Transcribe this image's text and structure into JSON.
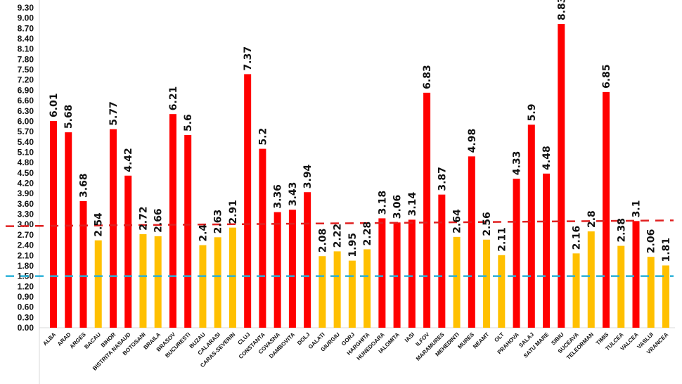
{
  "chart_data": {
    "type": "bar",
    "title": "",
    "xlabel": "",
    "ylabel": "",
    "ylim": [
      0,
      9.3
    ],
    "ytick_step": 0.3,
    "grid": false,
    "legend": "none",
    "categories": [
      "ALBA",
      "ARAD",
      "ARGES",
      "BACAU",
      "BIHOR",
      "BISTRITA NASAUD",
      "BOTOSANI",
      "BRAILA",
      "BRASOV",
      "BUCURESTI",
      "BUZAU",
      "CALARASI",
      "CARAS-SEVERIN",
      "CLUJ",
      "CONSTANTA",
      "COVASNA",
      "DAMBOVITA",
      "DOLJ",
      "GALATI",
      "GIURGIU",
      "GORJ",
      "HARGHITA",
      "HUNEDOARA",
      "IALOMITA",
      "IASI",
      "ILFOV",
      "MARAMURES",
      "MEHEDINTI",
      "MURES",
      "NEAMT",
      "OLT",
      "PRAHOVA",
      "SALAJ",
      "SATU MARE",
      "SIBIU",
      "SUCEAVA",
      "TELEORMAN",
      "TIMIS",
      "TULCEA",
      "VALCEA",
      "VASLUI",
      "VRANCEA"
    ],
    "values": [
      6.01,
      5.68,
      3.68,
      2.54,
      5.77,
      4.42,
      2.72,
      2.66,
      6.21,
      5.6,
      2.4,
      2.63,
      2.91,
      7.37,
      5.2,
      3.36,
      3.43,
      3.94,
      2.08,
      2.22,
      1.95,
      2.28,
      3.18,
      3.06,
      3.14,
      6.83,
      3.87,
      2.64,
      4.98,
      2.56,
      2.11,
      4.33,
      5.9,
      4.48,
      8.83,
      2.16,
      2.8,
      6.85,
      2.38,
      3.1,
      2.06,
      1.81
    ],
    "data_labels": [
      "6.01",
      "5.68",
      "3.68",
      "2.54",
      "5.77",
      "4.42",
      "2.72",
      "2.66",
      "6.21",
      "5.6",
      "2.4",
      "2.63",
      "2.91",
      "7.37",
      "5.2",
      "3.36",
      "3.43",
      "3.94",
      "2.08",
      "2.22",
      "1.95",
      "2.28",
      "3.18",
      "3.06",
      "3.14",
      "6.83",
      "3.87",
      "2.64",
      "4.98",
      "2.56",
      "2.11",
      "4.33",
      "5.9",
      "4.48",
      "8.83",
      "2.16",
      "2.8",
      "6.85",
      "2.38",
      "3.1",
      "2.06",
      "1.81"
    ],
    "colors": {
      "high": "#ff0000",
      "low": "#ffc000",
      "color_threshold": 3.0
    },
    "reference_lines": [
      {
        "color": "#e02020",
        "style": "dashed",
        "y_start": 2.95,
        "y_end": 3.12
      },
      {
        "color": "#2ab0d8",
        "style": "dashed",
        "y_start": 1.5,
        "y_end": 1.5
      }
    ]
  }
}
